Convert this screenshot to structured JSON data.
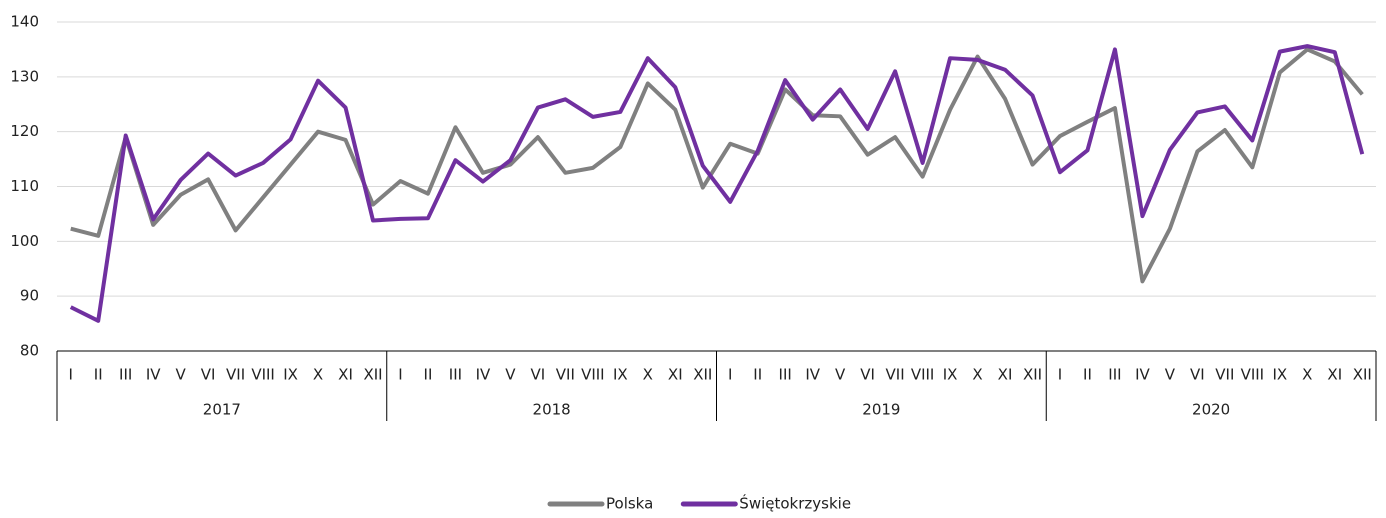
{
  "chart_data": {
    "type": "line",
    "categories": [
      "I",
      "II",
      "III",
      "IV",
      "V",
      "VI",
      "VII",
      "VIII",
      "IX",
      "X",
      "XI",
      "XII",
      "I",
      "II",
      "III",
      "IV",
      "V",
      "VI",
      "VII",
      "VIII",
      "IX",
      "X",
      "XI",
      "XII",
      "I",
      "II",
      "III",
      "IV",
      "V",
      "VI",
      "VII",
      "VIII",
      "IX",
      "X",
      "XI",
      "XII",
      "I",
      "II",
      "III",
      "IV",
      "V",
      "VI",
      "VII",
      "VIII",
      "IX",
      "X",
      "XI",
      "XII"
    ],
    "year_groups": [
      "2017",
      "2018",
      "2019",
      "2020"
    ],
    "series": [
      {
        "name": "Polska",
        "color": "#808080",
        "values": [
          102.3,
          101,
          119,
          103,
          108.5,
          111.3,
          102,
          108,
          114,
          120,
          118.5,
          106.7,
          111,
          108.7,
          120.8,
          112.5,
          114,
          119,
          112.5,
          113.4,
          117.2,
          128.8,
          124,
          109.8,
          117.8,
          116,
          127.7,
          123,
          122.8,
          115.8,
          119,
          111.8,
          124,
          133.7,
          126,
          114,
          119.2,
          121.8,
          124.3,
          92.7,
          102.3,
          116.4,
          120.3,
          113.5,
          130.8,
          135,
          132.8,
          126.8
        ]
      },
      {
        "name": "Świętokrzyskie",
        "color": "#7030a0",
        "values": [
          88,
          85.5,
          119.3,
          104,
          111.2,
          116,
          112,
          114.3,
          118.6,
          129.3,
          124.4,
          103.8,
          104.1,
          104.2,
          114.8,
          110.9,
          114.8,
          124.4,
          125.9,
          122.7,
          123.6,
          133.4,
          128.1,
          113.8,
          107.2,
          116.5,
          129.4,
          122.2,
          127.7,
          120.5,
          131,
          114.3,
          133.4,
          133.1,
          131.3,
          126.6,
          112.6,
          116.6,
          135,
          104.6,
          116.7,
          123.5,
          124.6,
          118.4,
          134.6,
          135.6,
          134.5,
          115.9
        ]
      }
    ],
    "ylim": [
      80,
      140
    ],
    "yticks": [
      80,
      90,
      100,
      110,
      120,
      130,
      140
    ],
    "grid": true,
    "legend": "bottom"
  }
}
